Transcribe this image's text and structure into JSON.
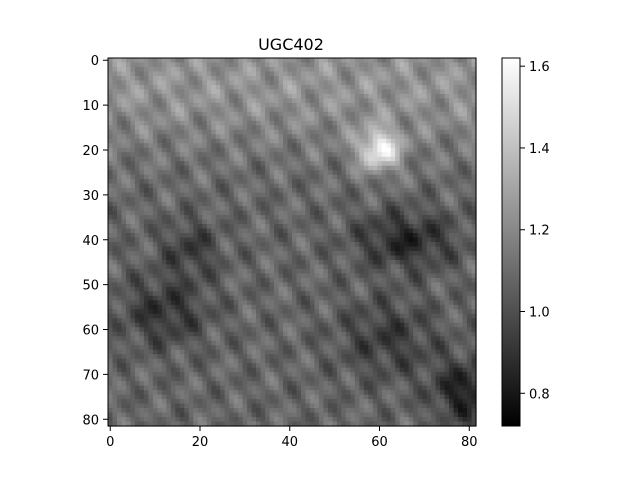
{
  "chart_data": {
    "type": "heatmap",
    "title": "UGC402",
    "xlabel": "",
    "ylabel": "",
    "grid_size": [
      82,
      82
    ],
    "x_ticks": [
      "0",
      "20",
      "40",
      "60",
      "80"
    ],
    "y_ticks": [
      "0",
      "10",
      "20",
      "30",
      "40",
      "50",
      "60",
      "70",
      "80"
    ],
    "colormap": "gray",
    "colorbar": {
      "range": [
        0.72,
        1.62
      ],
      "ticks": [
        "0.8",
        "1.0",
        "1.2",
        "1.4",
        "1.6"
      ]
    },
    "features": [
      {
        "x": 60,
        "y": 20,
        "value": 1.6
      },
      {
        "x": 12,
        "y": 56,
        "value": 0.85
      },
      {
        "x": 62,
        "y": 38,
        "value": 0.82
      },
      {
        "x": 78,
        "y": 72,
        "value": 0.75
      },
      {
        "x": 10,
        "y": 8,
        "value": 1.35
      },
      {
        "x": 40,
        "y": 15,
        "value": 1.4
      }
    ]
  }
}
